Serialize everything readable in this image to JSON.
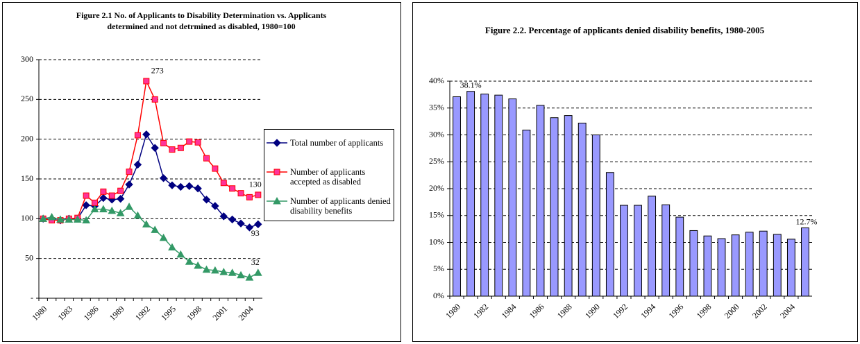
{
  "chart_data": [
    {
      "type": "line",
      "title": "Figure 2.1 No.  of Applicants to Disability Determination  vs. Applicants determined and not detrmined as disabled, 1980=100",
      "categories": [
        "1980",
        null,
        null,
        "1983",
        null,
        null,
        "1986",
        null,
        null,
        "1989",
        null,
        null,
        "1992",
        null,
        null,
        "1995",
        null,
        null,
        "1998",
        null,
        null,
        "2001",
        null,
        null,
        "2004",
        null
      ],
      "ylim": [
        0,
        300
      ],
      "yticks": [
        {
          "value": 0,
          "label": "-"
        },
        50,
        100,
        150,
        200,
        250,
        300
      ],
      "grid": true,
      "legend": "right",
      "series": [
        {
          "name": "Total number of applicants",
          "color": "#000080",
          "marker": "diamond",
          "marker_color": "#000080",
          "values": [
            100,
            99,
            98,
            100,
            100,
            117,
            116,
            126,
            124,
            125,
            143,
            168,
            206,
            189,
            151,
            142,
            140,
            141,
            138,
            124,
            116,
            103,
            99,
            94,
            89,
            93
          ],
          "value_labels": [
            null,
            null,
            null,
            null,
            null,
            null,
            null,
            null,
            null,
            null,
            null,
            null,
            null,
            null,
            null,
            null,
            null,
            null,
            null,
            null,
            null,
            null,
            null,
            null,
            null,
            "93"
          ]
        },
        {
          "name": "Number of applicants accepted as disabled",
          "color": "#ff0000",
          "marker": "square",
          "marker_color": "#ff3399",
          "values": [
            100,
            98,
            98,
            100,
            101,
            129,
            120,
            134,
            129,
            135,
            159,
            205,
            273,
            250,
            195,
            187,
            189,
            197,
            196,
            176,
            163,
            145,
            138,
            132,
            127,
            130
          ],
          "value_labels": [
            null,
            null,
            null,
            null,
            null,
            null,
            null,
            null,
            null,
            null,
            null,
            null,
            "273",
            null,
            null,
            null,
            null,
            null,
            null,
            null,
            null,
            null,
            null,
            null,
            null,
            "130"
          ]
        },
        {
          "name": "Number of applicants denied disability benefits",
          "color": "#339966",
          "marker": "triangle",
          "marker_color": "#339966",
          "values": [
            100,
            102,
            99,
            99,
            99,
            98,
            112,
            112,
            110,
            107,
            115,
            104,
            93,
            86,
            76,
            64,
            55,
            46,
            41,
            36,
            35,
            33,
            32,
            29,
            26,
            32
          ],
          "value_labels": [
            null,
            null,
            null,
            null,
            null,
            null,
            null,
            null,
            null,
            null,
            null,
            null,
            null,
            null,
            null,
            null,
            null,
            null,
            null,
            null,
            null,
            null,
            null,
            null,
            null,
            "32"
          ]
        }
      ]
    },
    {
      "type": "bar",
      "title": "Figure 2.2. Percentage of applicants denied disability benefits, 1980-2005",
      "categories": [
        "1980",
        null,
        "1982",
        null,
        "1984",
        null,
        "1986",
        null,
        "1988",
        null,
        "1990",
        null,
        "1992",
        null,
        "1994",
        null,
        "1996",
        null,
        "1998",
        null,
        "2000",
        null,
        "2002",
        null,
        "2004",
        null
      ],
      "values": [
        37.1,
        38.1,
        37.6,
        37.4,
        36.7,
        30.9,
        35.5,
        33.2,
        33.6,
        32.2,
        30.0,
        23.0,
        16.9,
        16.9,
        18.6,
        17.0,
        14.7,
        12.2,
        11.2,
        10.7,
        11.4,
        11.9,
        12.1,
        11.5,
        10.6,
        12.7
      ],
      "value_labels": [
        null,
        "38.1%",
        null,
        null,
        null,
        null,
        null,
        null,
        null,
        null,
        null,
        null,
        null,
        null,
        null,
        null,
        null,
        null,
        null,
        null,
        null,
        null,
        null,
        null,
        null,
        "12.7%"
      ],
      "color": "#9999ff",
      "ylim": [
        0,
        40
      ],
      "yticks": [
        {
          "value": 0,
          "label": "0%"
        },
        {
          "value": 5,
          "label": "5%"
        },
        {
          "value": 10,
          "label": "10%"
        },
        {
          "value": 15,
          "label": "15%"
        },
        {
          "value": 20,
          "label": "20%"
        },
        {
          "value": 25,
          "label": "25%"
        },
        {
          "value": 30,
          "label": "30%"
        },
        {
          "value": 35,
          "label": "35%"
        },
        {
          "value": 40,
          "label": "40%"
        }
      ],
      "grid": true
    }
  ]
}
